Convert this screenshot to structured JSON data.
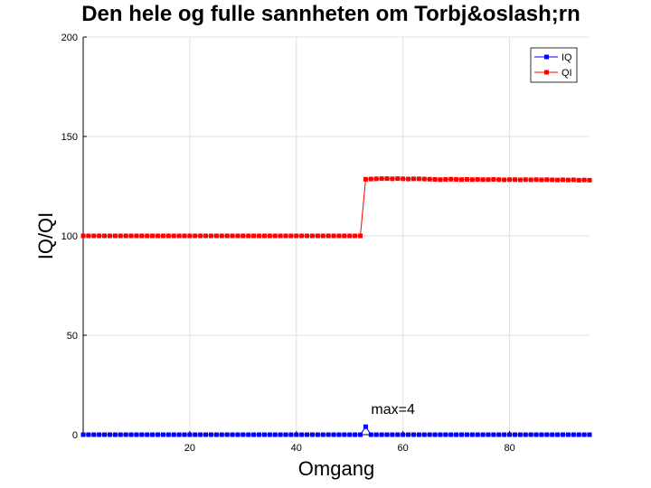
{
  "chart_data": {
    "type": "line",
    "title": "Den hele og fulle sannheten om Torbj&oslash;rn",
    "xlabel": "Omgang",
    "ylabel": "IQ/QI",
    "xlim": [
      0,
      95
    ],
    "ylim": [
      0,
      200
    ],
    "xticks": [
      20,
      40,
      60,
      80
    ],
    "yticks": [
      0,
      50,
      100,
      150,
      200
    ],
    "grid": true,
    "legend_position": "top-right",
    "x_start": 0,
    "x_end": 95,
    "series": [
      {
        "name": "IQ",
        "color": "#0000ff",
        "marker": "square",
        "values": [
          0,
          0,
          0,
          0,
          0,
          0,
          0,
          0,
          0,
          0,
          0,
          0,
          0,
          0,
          0,
          0,
          0,
          0,
          0,
          0,
          0,
          0,
          0,
          0,
          0,
          0,
          0,
          0,
          0,
          0,
          0,
          0,
          0,
          0,
          0,
          0,
          0,
          0,
          0,
          0,
          0,
          0,
          0,
          0,
          0,
          0,
          0,
          0,
          0,
          0,
          0,
          0,
          0,
          4,
          0,
          0,
          0,
          0,
          0,
          0,
          0,
          0,
          0,
          0,
          0,
          0,
          0,
          0,
          0,
          0,
          0,
          0,
          0,
          0,
          0,
          0,
          0,
          0,
          0,
          0,
          0,
          0,
          0,
          0,
          0,
          0,
          0,
          0,
          0,
          0,
          0,
          0,
          0,
          0,
          0,
          0
        ]
      },
      {
        "name": "QI",
        "color": "#ff0000",
        "marker": "square",
        "values": [
          100,
          100,
          100,
          100,
          100,
          100,
          100,
          100,
          100,
          100,
          100,
          100,
          100,
          100,
          100,
          100,
          100,
          100,
          100,
          100,
          100,
          100,
          100,
          100,
          100,
          100,
          100,
          100,
          100,
          100,
          100,
          100,
          100,
          100,
          100,
          100,
          100,
          100,
          100,
          100,
          100,
          100,
          100,
          100,
          100,
          100,
          100,
          100,
          100,
          100,
          100,
          100,
          100,
          128.5,
          128.6,
          128.7,
          128.8,
          128.8,
          128.7,
          128.8,
          128.7,
          128.6,
          128.7,
          128.7,
          128.6,
          128.5,
          128.4,
          128.3,
          128.4,
          128.5,
          128.4,
          128.3,
          128.4,
          128.3,
          128.4,
          128.3,
          128.3,
          128.4,
          128.3,
          128.2,
          128.3,
          128.3,
          128.2,
          128.3,
          128.2,
          128.3,
          128.2,
          128.3,
          128.2,
          128.1,
          128.2,
          128.1,
          128.2,
          128.0,
          128.1,
          128.0
        ]
      }
    ],
    "annotations": [
      {
        "text": "max=4",
        "x": 53,
        "y": 4
      }
    ]
  }
}
